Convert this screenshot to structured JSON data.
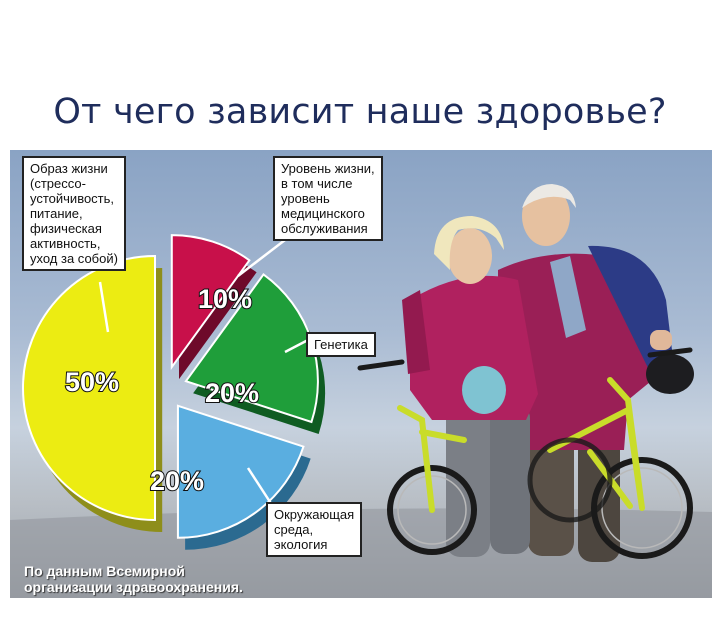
{
  "title": "От чего зависит наше здоровье?",
  "chart_data": {
    "type": "pie",
    "title": "От чего зависит наше здоровье?",
    "slices": [
      {
        "label": "Образ жизни\n(стрессо-\nустойчивость,\nпитание,\nфизическая\nактивность,\nуход за собой)",
        "value": 50,
        "display": "50%",
        "color": "#ecec12"
      },
      {
        "label": "Уровень жизни,\nв том числе\nуровень\nмедицинского\nобслуживания",
        "value": 10,
        "display": "10%",
        "color": "#c8104a"
      },
      {
        "label": "Генетика",
        "value": 20,
        "display": "20%",
        "color": "#1f9e3a"
      },
      {
        "label": "Окружающая\nсреда,\nэкология",
        "value": 20,
        "display": "20%",
        "color": "#5aaee0"
      }
    ]
  },
  "source": "По данным Всемирной\nорганизации здравоохранения."
}
